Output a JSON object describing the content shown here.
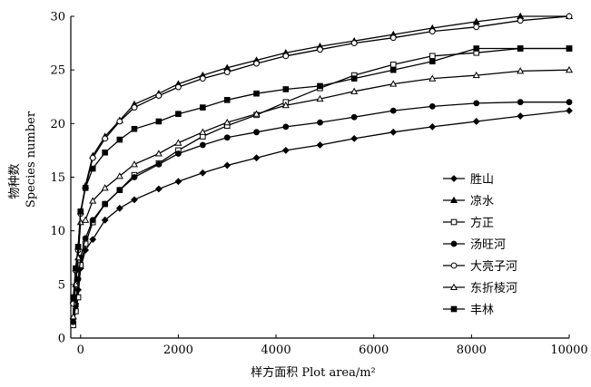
{
  "chart_data": {
    "type": "line",
    "title": "",
    "xlabel": "样方面积 Plot area/m²",
    "ylabel_cn": "物种数",
    "ylabel_en": "Species number",
    "xlim": [
      -200,
      10000
    ],
    "ylim": [
      0,
      30
    ],
    "xticks": [
      0,
      2000,
      4000,
      6000,
      8000,
      10000
    ],
    "yticks": [
      0,
      5,
      10,
      15,
      20,
      25,
      30
    ],
    "grid": false,
    "legend_position": "right",
    "series": [
      {
        "name": "胜山",
        "marker": "diamond-filled",
        "x": [
          -150,
          -100,
          -50,
          0,
          100,
          250,
          500,
          800,
          1100,
          1600,
          2000,
          2500,
          3000,
          3600,
          4200,
          4900,
          5600,
          6400,
          7200,
          8100,
          9000,
          10000
        ],
        "y": [
          1.8,
          3.2,
          4.5,
          6.5,
          8.2,
          9.2,
          11.0,
          12.1,
          12.9,
          13.9,
          14.6,
          15.4,
          16.1,
          16.8,
          17.5,
          18.0,
          18.6,
          19.2,
          19.7,
          20.2,
          20.7,
          21.2
        ]
      },
      {
        "name": "凉水",
        "marker": "triangle-filled",
        "x": [
          -150,
          -100,
          -50,
          0,
          100,
          250,
          500,
          800,
          1100,
          1600,
          2000,
          2500,
          3000,
          3600,
          4200,
          4900,
          5600,
          6400,
          7200,
          8100,
          9000,
          10000
        ],
        "y": [
          3.5,
          6.5,
          8.5,
          11.8,
          14.2,
          17.0,
          18.8,
          20.3,
          21.8,
          22.8,
          23.7,
          24.5,
          25.2,
          25.9,
          26.6,
          27.2,
          27.7,
          28.3,
          28.9,
          29.5,
          30.0,
          30.0
        ]
      },
      {
        "name": "方正",
        "marker": "square-open",
        "x": [
          -150,
          -100,
          -50,
          0,
          100,
          250,
          500,
          800,
          1100,
          1600,
          2000,
          2500,
          3000,
          3600,
          4200,
          4900,
          5600,
          6400,
          7200,
          8100,
          9000,
          10000
        ],
        "y": [
          1.2,
          2.5,
          3.8,
          6.8,
          8.8,
          10.8,
          12.5,
          13.8,
          15.2,
          16.3,
          17.5,
          18.8,
          19.8,
          20.8,
          22.0,
          23.3,
          24.5,
          25.5,
          26.3,
          26.6,
          27.0,
          27.0
        ]
      },
      {
        "name": "汤旺河",
        "marker": "circle-filled",
        "x": [
          -150,
          -100,
          -50,
          0,
          100,
          250,
          500,
          800,
          1100,
          1600,
          2000,
          2500,
          3000,
          3600,
          4200,
          4900,
          5600,
          6400,
          7200,
          8100,
          9000,
          10000
        ],
        "y": [
          1.5,
          3.0,
          5.5,
          7.5,
          9.3,
          11.0,
          12.5,
          13.8,
          15.0,
          16.2,
          17.2,
          18.0,
          18.7,
          19.2,
          19.7,
          20.1,
          20.6,
          21.2,
          21.6,
          21.9,
          22.0,
          22.0
        ]
      },
      {
        "name": "大亮子河",
        "marker": "circle-open",
        "x": [
          -150,
          -100,
          -50,
          0,
          100,
          250,
          500,
          800,
          1100,
          1600,
          2000,
          2500,
          3000,
          3600,
          4200,
          4900,
          5600,
          6400,
          7200,
          8100,
          9000,
          10000
        ],
        "y": [
          3.2,
          6.3,
          8.2,
          11.6,
          14.0,
          16.8,
          18.6,
          20.2,
          21.5,
          22.6,
          23.4,
          24.2,
          24.8,
          25.6,
          26.3,
          26.9,
          27.5,
          28.0,
          28.6,
          29.0,
          29.6,
          30.0
        ]
      },
      {
        "name": "东折棱河",
        "marker": "triangle-open",
        "x": [
          -150,
          -100,
          -50,
          0,
          100,
          250,
          500,
          800,
          1100,
          1600,
          2000,
          2500,
          3000,
          3600,
          4200,
          4900,
          5600,
          6400,
          7200,
          8100,
          9000,
          10000
        ],
        "y": [
          2.0,
          5.0,
          7.5,
          10.8,
          11.0,
          12.8,
          14.0,
          15.1,
          16.2,
          17.2,
          18.2,
          19.2,
          20.1,
          20.9,
          21.7,
          22.3,
          23.0,
          23.7,
          24.2,
          24.5,
          24.9,
          25.0
        ]
      },
      {
        "name": "丰林",
        "marker": "square-filled",
        "x": [
          -150,
          -100,
          -50,
          0,
          100,
          250,
          500,
          800,
          1100,
          1600,
          2000,
          2500,
          3000,
          3600,
          4200,
          4900,
          5600,
          6400,
          7200,
          8100,
          9000,
          10000
        ],
        "y": [
          3.8,
          6.5,
          8.5,
          11.8,
          14.0,
          15.8,
          17.3,
          18.5,
          19.5,
          20.2,
          20.9,
          21.5,
          22.2,
          22.8,
          23.2,
          23.5,
          24.2,
          25.0,
          25.8,
          27.0,
          27.0,
          27.0
        ]
      }
    ]
  }
}
